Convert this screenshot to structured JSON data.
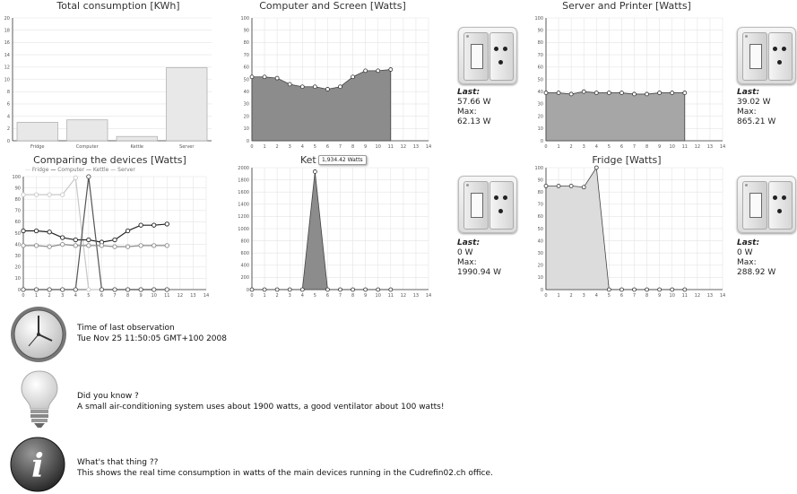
{
  "charts": {
    "total": {
      "title": "Total consumption [KWh]",
      "yticks": [
        "0",
        "2",
        "4",
        "6",
        "8",
        "10",
        "12",
        "14",
        "16",
        "18",
        "20"
      ],
      "categories": [
        "Fridge",
        "Computer",
        "Kettle",
        "Server"
      ],
      "values": [
        3.0,
        3.4,
        0.7,
        11.9
      ],
      "ymax": 20
    },
    "computer": {
      "title": "Computer and Screen [Watts]",
      "yticks": [
        "0",
        "10",
        "20",
        "30",
        "40",
        "50",
        "60",
        "70",
        "80",
        "90",
        "100"
      ],
      "xticks": [
        "0",
        "1",
        "2",
        "3",
        "4",
        "5",
        "6",
        "7",
        "8",
        "9",
        "10",
        "11",
        "12",
        "13",
        "14"
      ],
      "values": [
        52,
        52,
        51,
        46,
        44,
        44,
        42,
        44,
        52,
        57,
        57,
        58
      ],
      "ymax": 100
    },
    "server": {
      "title": "Server and Printer [Watts]",
      "yticks": [
        "0",
        "10",
        "20",
        "30",
        "40",
        "50",
        "60",
        "70",
        "80",
        "90",
        "100"
      ],
      "xticks": [
        "0",
        "1",
        "2",
        "3",
        "4",
        "5",
        "6",
        "7",
        "8",
        "9",
        "10",
        "11",
        "12",
        "13",
        "14"
      ],
      "values": [
        39,
        39,
        38,
        40,
        39,
        39,
        39,
        38,
        38,
        39,
        39,
        39
      ],
      "ymax": 100
    },
    "compare": {
      "title": "Comparing the devices [Watts]",
      "legend": [
        "Fridge",
        "Computer",
        "Kettle",
        "Server"
      ],
      "yticks": [
        "0",
        "10",
        "20",
        "30",
        "40",
        "50",
        "60",
        "70",
        "80",
        "90",
        "100"
      ],
      "xticks": [
        "0",
        "1",
        "2",
        "3",
        "4",
        "5",
        "6",
        "7",
        "8",
        "9",
        "10",
        "11",
        "12",
        "13",
        "14"
      ],
      "series": [
        {
          "name": "Fridge",
          "color": "#c8c8c8",
          "values": [
            84,
            84,
            84,
            84,
            99,
            0,
            0,
            0,
            0,
            0,
            0,
            0
          ]
        },
        {
          "name": "Computer",
          "color": "#222222",
          "values": [
            52,
            52,
            51,
            46,
            44,
            44,
            42,
            44,
            52,
            57,
            57,
            58
          ]
        },
        {
          "name": "Kettle",
          "color": "#555555",
          "values": [
            0,
            0,
            0,
            0,
            0,
            100,
            0,
            0,
            0,
            0,
            0,
            0
          ]
        },
        {
          "name": "Server",
          "color": "#8a8a8a",
          "values": [
            39,
            39,
            38,
            40,
            39,
            39,
            39,
            38,
            38,
            39,
            39,
            39
          ]
        }
      ],
      "ymax": 100
    },
    "kettle": {
      "title": "Kettle [Watts]",
      "title_visible": "Ket",
      "tooltip": "1,934.42 Watts",
      "yticks": [
        "0",
        "200",
        "400",
        "600",
        "800",
        "1000",
        "1200",
        "1400",
        "1600",
        "1800",
        "2000"
      ],
      "xticks": [
        "0",
        "1",
        "2",
        "3",
        "4",
        "5",
        "6",
        "7",
        "8",
        "9",
        "10",
        "11",
        "12",
        "13",
        "14"
      ],
      "values": [
        0,
        0,
        0,
        0,
        0,
        1934.42,
        0,
        0,
        0,
        0,
        0,
        0
      ],
      "ymax": 2000
    },
    "fridge": {
      "title": "Fridge [Watts]",
      "yticks": [
        "0",
        "10",
        "20",
        "30",
        "40",
        "50",
        "60",
        "70",
        "80",
        "90",
        "100"
      ],
      "xticks": [
        "0",
        "1",
        "2",
        "3",
        "4",
        "5",
        "6",
        "7",
        "8",
        "9",
        "10",
        "11",
        "12",
        "13",
        "14"
      ],
      "values": [
        85,
        85,
        85,
        84,
        100,
        0,
        0,
        0,
        0,
        0,
        0,
        0
      ],
      "ymax": 100
    }
  },
  "stats": {
    "computer": {
      "last_label": "Last:",
      "last": "57.66 W",
      "max_label": "Max:",
      "max": "62.13 W"
    },
    "server": {
      "last_label": "Last:",
      "last": "39.02 W",
      "max_label": "Max:",
      "max": "865.21 W"
    },
    "kettle": {
      "last_label": "Last:",
      "last": "0 W",
      "max_label": "Max:",
      "max": "1990.94 W"
    },
    "fridge": {
      "last_label": "Last:",
      "last": "0 W",
      "max_label": "Max:",
      "max": "288.92 W"
    }
  },
  "info": {
    "time_title": "Time of last observation",
    "time_value": "Tue Nov 25 11:50:05 GMT+100 2008",
    "tip_title": "Did you know ?",
    "tip_text": "A small air-conditioning system uses about 1900 watts, a good ventilator about 100 watts!",
    "about_title": "What's that thing ??",
    "about_text": "This shows the real time consumption in watts of the main devices running in the Cudrefin02.ch office."
  },
  "icons": {
    "clock": "clock-icon",
    "bulb": "lightbulb-icon",
    "info": "info-icon",
    "socket": "power-socket-icon"
  }
}
